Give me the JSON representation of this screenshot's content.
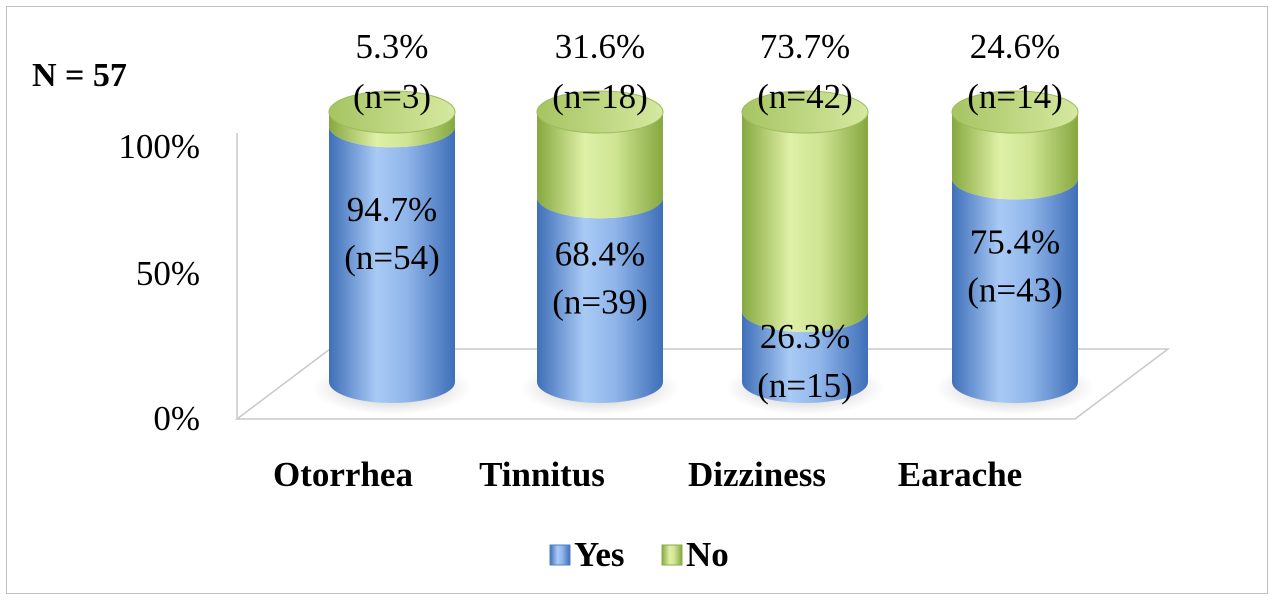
{
  "chart_data": {
    "type": "bar",
    "stacked": true,
    "annotation": "N = 57",
    "categories": [
      "Otorrhea",
      "Tinnitus",
      "Dizziness",
      "Earache"
    ],
    "series": [
      {
        "name": "Yes",
        "values": [
          94.7,
          68.4,
          26.3,
          75.4
        ],
        "labels": [
          "94.7%",
          "68.4%",
          "26.3%",
          "75.4%"
        ],
        "counts": [
          "(n=54)",
          "(n=39)",
          "(n=15)",
          "(n=43)"
        ],
        "color": "#6d9edb"
      },
      {
        "name": "No",
        "values": [
          5.3,
          31.6,
          73.7,
          24.6
        ],
        "labels": [
          "5.3%",
          "31.6%",
          "73.7%",
          "24.6%"
        ],
        "counts": [
          "(n=3)",
          "(n=18)",
          "(n=42)",
          "(n=14)"
        ],
        "color": "#b6d17a"
      }
    ],
    "yticks": [
      "0%",
      "50%",
      "100%"
    ],
    "ylim": [
      0,
      100
    ],
    "legend": "bottom",
    "grid": false
  }
}
